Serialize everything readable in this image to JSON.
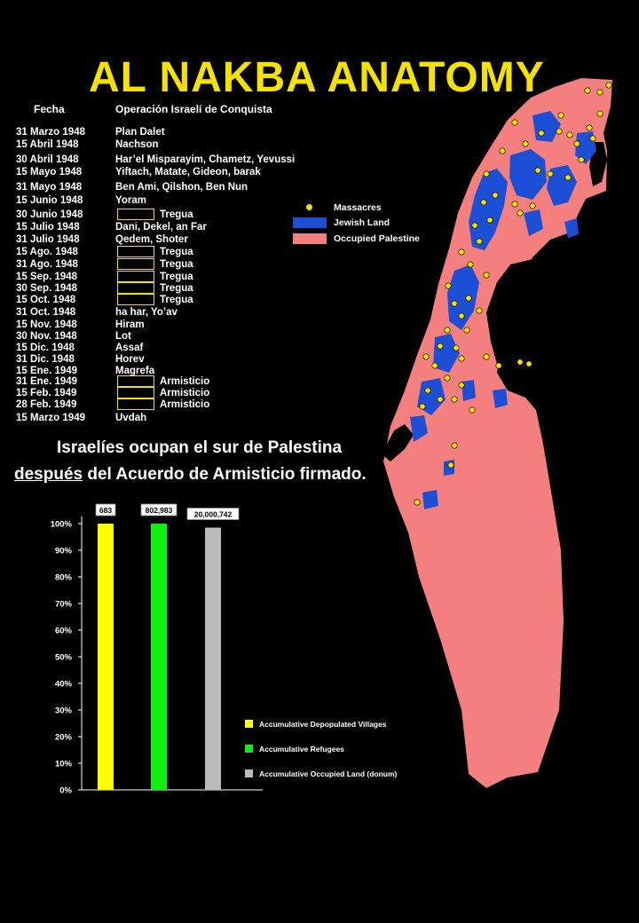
{
  "title": "AL NAKBA ANATOMY",
  "timeline": {
    "header_date": "Fecha",
    "header_operation": "Operación Israelí de Conquista",
    "truce_label": "Tregua",
    "armistice_label": "Armisticio",
    "rows": [
      {
        "date": "31 Marzo 1948",
        "op": "Plan Dalet"
      },
      {
        "date": "15 Abril 1948",
        "op": "Nachson"
      },
      {
        "date": "30 Abril 1948",
        "op": "Har’el Misparayim, Chametz, Yevussi"
      },
      {
        "date": "15 Mayo 1948",
        "op": "Yiftach, Matate, Gideon, barak"
      },
      {
        "date": "31 Mayo 1948",
        "op": "Ben Ami, Qilshon, Ben Nun"
      },
      {
        "date": "15 Junio 1948",
        "op": "Yoram"
      },
      {
        "date": "30 Junio 1948",
        "op": "",
        "kind": "truce"
      },
      {
        "date": "15 Julio 1948",
        "op": "Dani, Dekel, an Far"
      },
      {
        "date": "31 Julio 1948",
        "op": "Qedem, Shoter"
      },
      {
        "date": "15 Ago. 1948",
        "op": "",
        "kind": "truce"
      },
      {
        "date": "31 Ago. 1948",
        "op": "",
        "kind": "truce"
      },
      {
        "date": "15 Sep. 1948",
        "op": "",
        "kind": "truce"
      },
      {
        "date": "30 Sep. 1948",
        "op": "",
        "kind": "truce"
      },
      {
        "date": "15 Oct. 1948",
        "op": "",
        "kind": "truce"
      },
      {
        "date": "31 Oct. 1948",
        "op": "ha har, Yo’av"
      },
      {
        "date": "15 Nov. 1948",
        "op": "Hiram"
      },
      {
        "date": "30 Nov. 1948",
        "op": "Lot"
      },
      {
        "date": "15 Dic. 1948",
        "op": "Assaf"
      },
      {
        "date": "31 Dic. 1948",
        "op": "Horev"
      },
      {
        "date": "15 Ene. 1949",
        "op": "Magrefa"
      },
      {
        "date": "31 Ene. 1949",
        "op": "",
        "kind": "armistice"
      },
      {
        "date": "15 Feb. 1949",
        "op": "",
        "kind": "armistice"
      },
      {
        "date": "28 Feb. 1949",
        "op": "",
        "kind": "armistice"
      },
      {
        "date": "15 Marzo 1949",
        "op": "Uvdah"
      }
    ]
  },
  "map_legend": {
    "massacres": "Massacres",
    "jewish_land": "Jewish Land",
    "occupied": "Occupied Palestine",
    "colors": {
      "massacre": "#f5e100",
      "jewish": "#1d4fd6",
      "occupied": "#f47f7f",
      "unoccupied": "#000000"
    }
  },
  "subtitle": {
    "line1": "Israelíes ocupan el sur de Palestina",
    "line2_underlined": "después",
    "line2_rest": " del Acuerdo de Armisticio firmado."
  },
  "chart_data": {
    "type": "bar",
    "categories": [
      "Accumulative Depopulated Villages",
      "Accumulative Refugees",
      "Accumulative Occupied Land (donum)"
    ],
    "values": [
      100,
      100,
      98.5
    ],
    "value_labels": [
      "683",
      "802,983",
      "20,000,742"
    ],
    "colors": [
      "#ffff00",
      "#11ee11",
      "#bbbbbb"
    ],
    "yticks": [
      "0%",
      "10%",
      "20%",
      "30%",
      "40%",
      "50%",
      "60%",
      "70%",
      "80%",
      "90%",
      "100%"
    ],
    "ylim": [
      0,
      100
    ],
    "legend": [
      "Accumulative Depopulated Villages",
      "Accumulative Refugees",
      "Accumulative Occupied Land (donum)"
    ],
    "legend_position": "bottom-right"
  }
}
